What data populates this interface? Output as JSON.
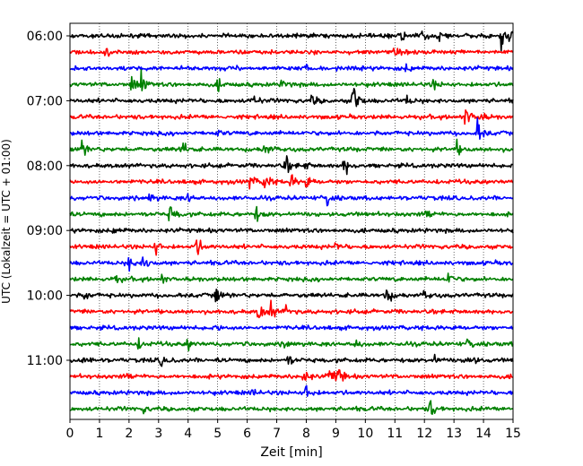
{
  "chart_data": {
    "type": "line",
    "subtype": "helicorder",
    "xlabel": "Zeit  [min]",
    "ylabel": "UTC (Lokalzeit = UTC + 01:00)",
    "xlim": [
      0,
      15
    ],
    "x_ticks": [
      "0",
      "1",
      "2",
      "3",
      "4",
      "5",
      "6",
      "7",
      "8",
      "9",
      "10",
      "11",
      "12",
      "13",
      "14",
      "15"
    ],
    "y_ticks": [
      "06:00",
      "07:00",
      "08:00",
      "09:00",
      "10:00",
      "11:00"
    ],
    "grid": "vertical-dotted",
    "row_interval_min": 15,
    "start_time": "06:00",
    "rows": [
      {
        "start": "06:00",
        "color": "#000000",
        "events": [
          {
            "t": 11.2,
            "a": 1.0
          },
          {
            "t": 11.9,
            "a": 0.5
          },
          {
            "t": 12.5,
            "a": 0.5
          },
          {
            "t": 14.6,
            "a": 1.1
          },
          {
            "t": 14.85,
            "a": 1.3
          }
        ]
      },
      {
        "start": "06:15",
        "color": "#ff0000",
        "events": [
          {
            "t": 1.2,
            "a": 0.4
          },
          {
            "t": 11.0,
            "a": 0.5
          }
        ]
      },
      {
        "start": "06:30",
        "color": "#0000ff",
        "events": [
          {
            "t": 8.0,
            "a": 0.4
          },
          {
            "t": 11.4,
            "a": 0.4
          }
        ]
      },
      {
        "start": "06:45",
        "color": "#008000",
        "events": [
          {
            "t": 2.1,
            "a": 1.0
          },
          {
            "t": 2.4,
            "a": 1.2
          },
          {
            "t": 5.0,
            "a": 0.6
          },
          {
            "t": 7.2,
            "a": 0.5
          },
          {
            "t": 12.3,
            "a": 0.5
          }
        ]
      },
      {
        "start": "07:00",
        "color": "#000000",
        "events": [
          {
            "t": 6.2,
            "a": 0.7
          },
          {
            "t": 8.2,
            "a": 0.6
          },
          {
            "t": 9.6,
            "a": 2.4
          },
          {
            "t": 11.4,
            "a": 0.5
          }
        ]
      },
      {
        "start": "07:15",
        "color": "#ff0000",
        "events": [
          {
            "t": 13.4,
            "a": 1.4
          },
          {
            "t": 13.9,
            "a": 0.5
          }
        ]
      },
      {
        "start": "07:30",
        "color": "#0000ff",
        "events": [
          {
            "t": 13.8,
            "a": 1.4
          },
          {
            "t": 5.0,
            "a": 0.3
          }
        ]
      },
      {
        "start": "07:45",
        "color": "#008000",
        "events": [
          {
            "t": 0.4,
            "a": 0.9
          },
          {
            "t": 3.8,
            "a": 0.9
          },
          {
            "t": 6.6,
            "a": 1.0
          },
          {
            "t": 13.1,
            "a": 0.7
          }
        ]
      },
      {
        "start": "08:00",
        "color": "#000000",
        "events": [
          {
            "t": 7.3,
            "a": 1.0
          },
          {
            "t": 9.3,
            "a": 1.1
          },
          {
            "t": 7.9,
            "a": 0.5
          }
        ]
      },
      {
        "start": "08:15",
        "color": "#ff0000",
        "events": [
          {
            "t": 6.1,
            "a": 0.8
          },
          {
            "t": 6.6,
            "a": 1.3
          },
          {
            "t": 7.5,
            "a": 0.7
          },
          {
            "t": 8.0,
            "a": 0.7
          }
        ]
      },
      {
        "start": "08:30",
        "color": "#0000ff",
        "events": [
          {
            "t": 2.7,
            "a": 0.6
          },
          {
            "t": 4.0,
            "a": 0.5
          },
          {
            "t": 8.7,
            "a": 1.0
          }
        ]
      },
      {
        "start": "08:45",
        "color": "#008000",
        "events": [
          {
            "t": 3.4,
            "a": 1.1
          },
          {
            "t": 6.3,
            "a": 0.8
          },
          {
            "t": 12.1,
            "a": 0.6
          }
        ]
      },
      {
        "start": "09:00",
        "color": "#000000",
        "events": [
          {
            "t": 1.5,
            "a": 0.3
          }
        ]
      },
      {
        "start": "09:15",
        "color": "#ff0000",
        "events": [
          {
            "t": 2.9,
            "a": 0.9
          },
          {
            "t": 4.3,
            "a": 1.1
          },
          {
            "t": 9.0,
            "a": 0.4
          }
        ]
      },
      {
        "start": "09:30",
        "color": "#0000ff",
        "events": [
          {
            "t": 2.0,
            "a": 0.9
          },
          {
            "t": 2.5,
            "a": 1.0
          }
        ]
      },
      {
        "start": "09:45",
        "color": "#008000",
        "events": [
          {
            "t": 1.5,
            "a": 0.5
          },
          {
            "t": 3.1,
            "a": 0.5
          },
          {
            "t": 12.8,
            "a": 0.7
          }
        ]
      },
      {
        "start": "10:00",
        "color": "#000000",
        "events": [
          {
            "t": 0.5,
            "a": 0.5
          },
          {
            "t": 4.95,
            "a": 0.8
          },
          {
            "t": 10.7,
            "a": 1.2
          },
          {
            "t": 12.0,
            "a": 0.5
          }
        ]
      },
      {
        "start": "10:15",
        "color": "#ff0000",
        "events": [
          {
            "t": 6.4,
            "a": 1.1
          },
          {
            "t": 6.8,
            "a": 0.9
          },
          {
            "t": 7.3,
            "a": 0.5
          }
        ]
      },
      {
        "start": "10:30",
        "color": "#0000ff",
        "events": [
          {
            "t": 5.0,
            "a": 0.3
          }
        ]
      },
      {
        "start": "10:45",
        "color": "#008000",
        "events": [
          {
            "t": 2.3,
            "a": 0.6
          },
          {
            "t": 4.0,
            "a": 0.6
          },
          {
            "t": 7.3,
            "a": 0.6
          },
          {
            "t": 9.6,
            "a": 0.7
          },
          {
            "t": 13.5,
            "a": 0.7
          }
        ]
      },
      {
        "start": "11:00",
        "color": "#000000",
        "events": [
          {
            "t": 0.5,
            "a": 0.6
          },
          {
            "t": 3.1,
            "a": 0.7
          },
          {
            "t": 7.4,
            "a": 0.6
          },
          {
            "t": 12.3,
            "a": 0.6
          },
          {
            "t": 13.5,
            "a": 1.1
          }
        ]
      },
      {
        "start": "11:15",
        "color": "#ff0000",
        "events": [
          {
            "t": 7.9,
            "a": 1.1
          },
          {
            "t": 8.8,
            "a": 1.3
          },
          {
            "t": 9.1,
            "a": 1.0
          },
          {
            "t": 2.0,
            "a": 0.3
          }
        ]
      },
      {
        "start": "11:30",
        "color": "#0000ff",
        "events": [
          {
            "t": 8.0,
            "a": 1.0
          },
          {
            "t": 6.2,
            "a": 0.3
          }
        ]
      },
      {
        "start": "11:45",
        "color": "#008000",
        "events": [
          {
            "t": 12.2,
            "a": 1.0
          },
          {
            "t": 2.5,
            "a": 0.3
          }
        ]
      }
    ]
  }
}
